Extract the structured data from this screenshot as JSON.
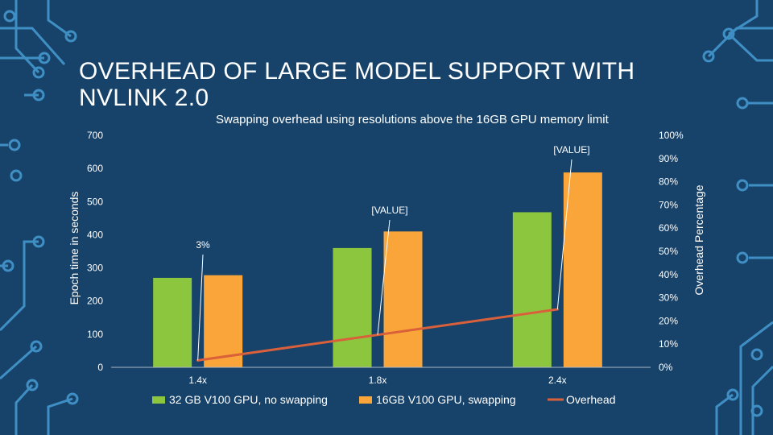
{
  "slide": {
    "title": "OVERHEAD OF LARGE MODEL SUPPORT WITH NVLINK 2.0"
  },
  "colors": {
    "background": "#17436a",
    "circuit": "#3f8fc4",
    "no_swapping": "#8cc63f",
    "swapping": "#faa53a",
    "overhead": "#d9603b",
    "text": "#ffffff"
  },
  "chart_data": {
    "type": "bar",
    "title": "Swapping overhead using resolutions above the 16GB GPU memory limit",
    "categories": [
      "1.4x",
      "1.8x",
      "2.4x"
    ],
    "series": [
      {
        "name": "32 GB V100 GPU, no swapping",
        "type": "bar",
        "axis": "left",
        "values": [
          270,
          360,
          468
        ]
      },
      {
        "name": "16GB V100 GPU, swapping",
        "type": "bar",
        "axis": "left",
        "values": [
          278,
          410,
          588
        ]
      },
      {
        "name": "Overhead",
        "type": "line",
        "axis": "right",
        "values": [
          3,
          14,
          25
        ]
      }
    ],
    "ylabel": "Epoch time in seconds",
    "y2label": "Overhead Percentage",
    "ylim": [
      0,
      700
    ],
    "y2lim": [
      0,
      100
    ],
    "yticks": [
      "0",
      "100",
      "200",
      "300",
      "400",
      "500",
      "600",
      "700"
    ],
    "y2ticks": [
      "0%",
      "10%",
      "20%",
      "30%",
      "40%",
      "50%",
      "60%",
      "70%",
      "80%",
      "90%",
      "100%"
    ],
    "data_labels": [
      "3%",
      "[VALUE]",
      "[VALUE]"
    ],
    "legend_position": "bottom",
    "grid": false
  }
}
